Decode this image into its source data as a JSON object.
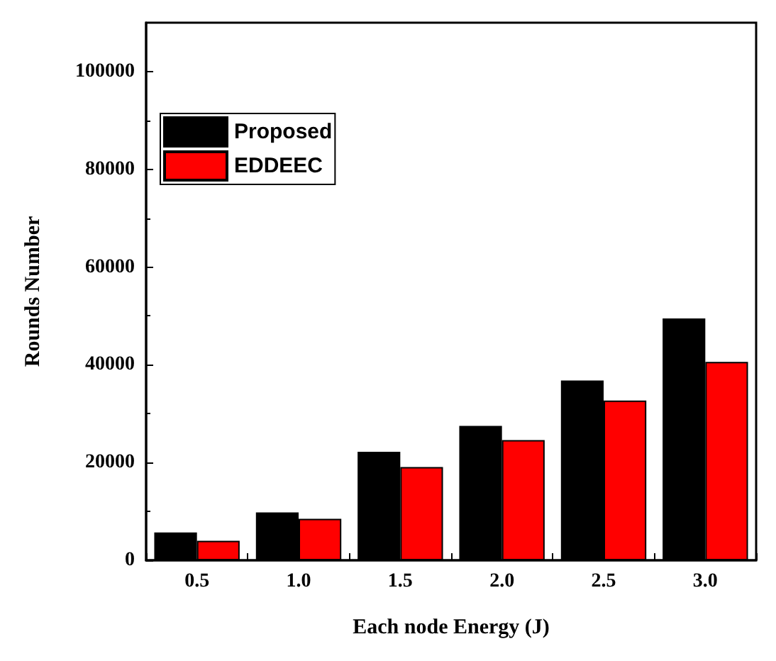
{
  "chart_data": {
    "type": "bar",
    "xlabel": "Each node Energy (J)",
    "ylabel": "Rounds Number",
    "categories": [
      "0.5",
      "1.0",
      "1.5",
      "2.0",
      "2.5",
      "3.0"
    ],
    "series": [
      {
        "name": "Proposed",
        "color": "#000000",
        "values": [
          5700,
          9800,
          22200,
          27500,
          36800,
          49500
        ]
      },
      {
        "name": "EDDEEC",
        "color": "#ff0000",
        "values": [
          4000,
          8500,
          19100,
          24600,
          32700,
          40600
        ]
      }
    ],
    "ylim": [
      0,
      110000
    ],
    "yticks": [
      0,
      20000,
      40000,
      60000,
      80000,
      100000
    ],
    "grid": false,
    "legend": "top left"
  }
}
